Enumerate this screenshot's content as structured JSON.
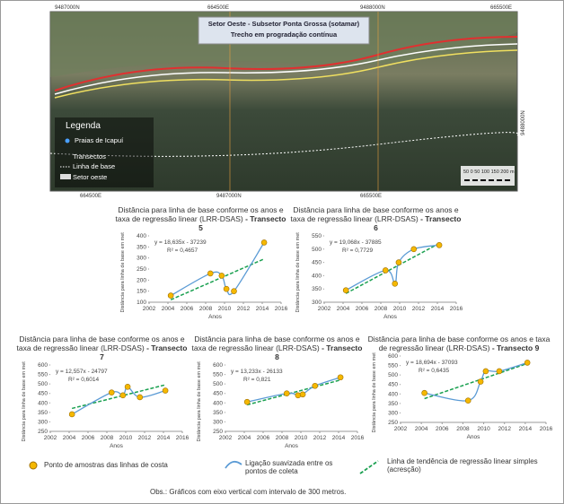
{
  "map": {
    "title": "Setor Oeste - Subsetor Ponta Grossa (sotamar)",
    "subtitle": "Trecho em progradação contínua",
    "coords_top": [
      "9487000N",
      "664500E",
      "9488000N",
      "665500E"
    ],
    "coords_bottom": [
      "664500E",
      "9487000N",
      "665500E"
    ],
    "coord_right": "9488000N",
    "legend": {
      "title": "Legenda",
      "items": [
        "Praias de Icapuí",
        "Transectos",
        "Linha de base",
        "Setor oeste"
      ]
    },
    "scale": "50   0   50  100 150 200 m"
  },
  "chart_data": [
    {
      "type": "scatter",
      "title": "Distância para linha de base conforme os anos e taxa de regressão linear (LRR-DSAS)",
      "subtitle": "- Transecto 5",
      "x_label": "Anos",
      "y_label": "Distância para linha de base em metros",
      "x": [
        2004.3,
        2008.5,
        2009.7,
        2010.2,
        2011,
        2014.2
      ],
      "values": [
        130,
        230,
        220,
        160,
        150,
        370
      ],
      "xlim": [
        2002,
        2016
      ],
      "xticks": [
        2002,
        2004,
        2006,
        2008,
        2010,
        2012,
        2014,
        2016
      ],
      "ylim": [
        100,
        400
      ],
      "yticks": [
        100,
        150,
        200,
        250,
        300,
        350,
        400
      ],
      "trend": {
        "equation": "y = 18,635x - 37239",
        "r2": "R² = 0,4657",
        "slope": 18.635,
        "intercept": -37239
      }
    },
    {
      "type": "scatter",
      "title": "Distância para linha de base conforme os anos e taxa de regressão linear (LRR-DSAS)",
      "subtitle": "- Transecto 6",
      "x_label": "Anos",
      "y_label": "Distância para linha de base em metros",
      "x": [
        2004.3,
        2008.5,
        2009.5,
        2009.9,
        2011.5,
        2014.2
      ],
      "values": [
        345,
        420,
        370,
        450,
        500,
        515
      ],
      "xlim": [
        2002,
        2016
      ],
      "xticks": [
        2002,
        2004,
        2006,
        2008,
        2010,
        2012,
        2014,
        2016
      ],
      "ylim": [
        300,
        550
      ],
      "yticks": [
        300,
        350,
        400,
        450,
        500,
        550
      ],
      "trend": {
        "equation": "y = 19,068x - 37885",
        "r2": "R² = 0,7729",
        "slope": 19.068,
        "intercept": -37885
      }
    },
    {
      "type": "scatter",
      "title": "Distância para linha de base conforme os anos e taxa de regressão linear (LRR-DSAS)",
      "subtitle": "- Transecto 7",
      "x_label": "Anos",
      "y_label": "Distância para linha de base em metros",
      "x": [
        2004.3,
        2008.5,
        2009.7,
        2010.2,
        2011.5,
        2014.2
      ],
      "values": [
        340,
        455,
        440,
        485,
        430,
        465
      ],
      "xlim": [
        2002,
        2016
      ],
      "xticks": [
        2002,
        2004,
        2006,
        2008,
        2010,
        2012,
        2014,
        2016
      ],
      "ylim": [
        250,
        600
      ],
      "yticks": [
        250,
        300,
        350,
        400,
        450,
        500,
        550,
        600
      ],
      "trend": {
        "equation": "y = 12,557x - 24797",
        "r2": "R² = 0,6014",
        "slope": 12.557,
        "intercept": -24797
      }
    },
    {
      "type": "scatter",
      "title": "Distância para linha de base conforme os anos e taxa de regressão linear (LRR-DSAS)",
      "subtitle": "- Transecto 8",
      "x_label": "Anos",
      "y_label": "Distância para linha de base em metros",
      "x": [
        2004.3,
        2008.5,
        2009.7,
        2010.2,
        2011.5,
        2014.2
      ],
      "values": [
        405,
        450,
        440,
        445,
        490,
        535
      ],
      "xlim": [
        2002,
        2016
      ],
      "xticks": [
        2002,
        2004,
        2006,
        2008,
        2010,
        2012,
        2014,
        2016
      ],
      "ylim": [
        250,
        600
      ],
      "yticks": [
        250,
        300,
        350,
        400,
        450,
        500,
        550,
        600
      ],
      "trend": {
        "equation": "y = 13,233x - 26133",
        "r2": "R² = 0,821",
        "slope": 13.233,
        "intercept": -26133
      }
    },
    {
      "type": "scatter",
      "title": "Distância para linha de base conforme os anos e taxa de regressão linear (LRR-DSAS)",
      "subtitle": "- Transecto 9",
      "x_label": "Anos",
      "y_label": "Distância para linha de base em metros",
      "x": [
        2004.3,
        2008.5,
        2009.7,
        2010.2,
        2011.5,
        2014.2
      ],
      "values": [
        405,
        365,
        465,
        520,
        520,
        565
      ],
      "xlim": [
        2002,
        2016
      ],
      "xticks": [
        2002,
        2004,
        2006,
        2008,
        2010,
        2012,
        2014,
        2016
      ],
      "ylim": [
        250,
        600
      ],
      "yticks": [
        250,
        300,
        350,
        400,
        450,
        500,
        550,
        600
      ],
      "trend": {
        "equation": "y = 18,694x - 37093",
        "r2": "R² = 0,6435",
        "slope": 18.694,
        "intercept": -37093
      }
    }
  ],
  "legend": {
    "points": "Ponto de amostras das linhas de costa",
    "smooth": "Ligação suavizada entre os pontos de coleta",
    "trend": "Linha de tendência de regressão linear simples (acresção)"
  },
  "note": "Obs.: Gráficos com eixo vertical com intervalo de 300 metros."
}
